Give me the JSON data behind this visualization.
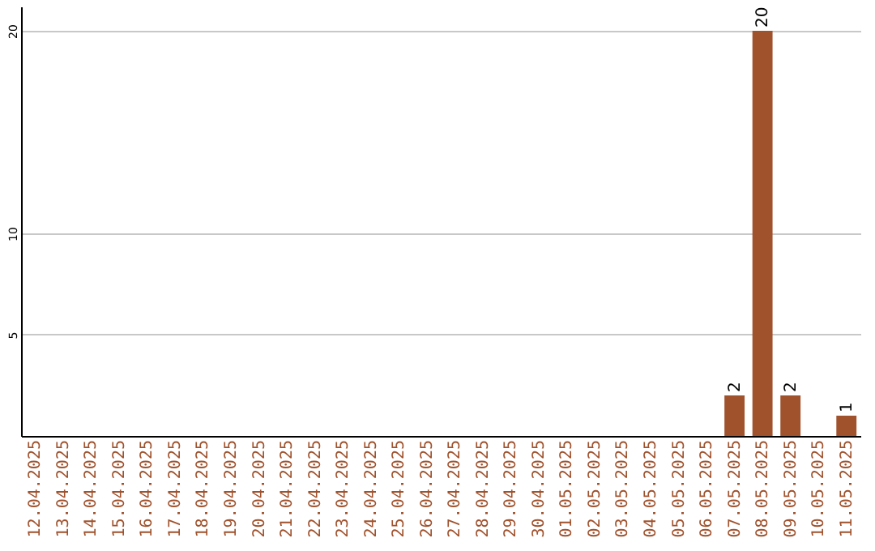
{
  "chart_data": {
    "type": "bar",
    "categories": [
      "12.04.2025",
      "13.04.2025",
      "14.04.2025",
      "15.04.2025",
      "16.04.2025",
      "17.04.2025",
      "18.04.2025",
      "19.04.2025",
      "20.04.2025",
      "21.04.2025",
      "22.04.2025",
      "23.04.2025",
      "24.04.2025",
      "25.04.2025",
      "26.04.2025",
      "27.04.2025",
      "28.04.2025",
      "29.04.2025",
      "30.04.2025",
      "01.05.2025",
      "02.05.2025",
      "03.05.2025",
      "04.05.2025",
      "05.05.2025",
      "06.05.2025",
      "07.05.2025",
      "08.05.2025",
      "09.05.2025",
      "10.05.2025",
      "11.05.2025"
    ],
    "values": [
      0,
      0,
      0,
      0,
      0,
      0,
      0,
      0,
      0,
      0,
      0,
      0,
      0,
      0,
      0,
      0,
      0,
      0,
      0,
      0,
      0,
      0,
      0,
      0,
      0,
      2,
      20,
      2,
      0,
      1
    ],
    "value_labels": [
      null,
      null,
      null,
      null,
      null,
      null,
      null,
      null,
      null,
      null,
      null,
      null,
      null,
      null,
      null,
      null,
      null,
      null,
      null,
      null,
      null,
      null,
      null,
      null,
      null,
      "2",
      "20",
      "2",
      null,
      "1"
    ],
    "color": "#a0522d",
    "ylim": [
      0,
      21.2
    ],
    "yticks": [
      5,
      10,
      20
    ],
    "grid": "y"
  }
}
